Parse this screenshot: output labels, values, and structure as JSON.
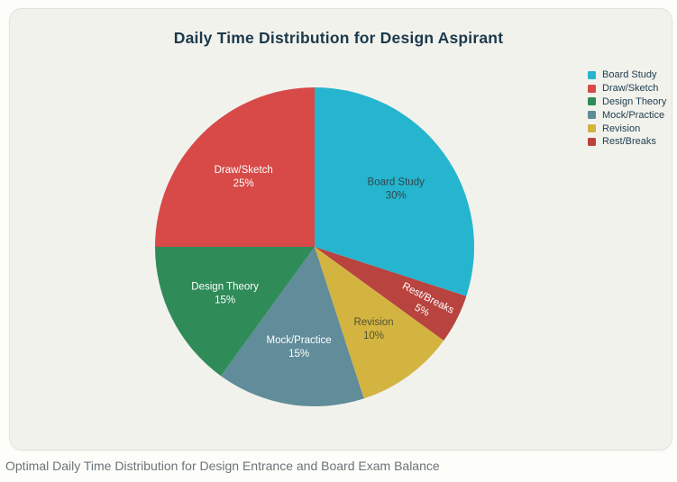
{
  "page": {
    "caption": "Optimal Daily Time Distribution for Design Entrance and Board Exam Balance"
  },
  "theme": {
    "page_background": "#fdfdfa",
    "card_background": "#f2f2ed",
    "card_border": "#e3e3da",
    "title_color": "#1c3a4a",
    "legend_text_color": "#21404f",
    "caption_color": "#6a7479"
  },
  "chart_data": {
    "type": "pie",
    "title": "Daily Time Distribution for Design Aspirant",
    "categories": [
      "Board Study",
      "Draw/Sketch",
      "Design Theory",
      "Mock/Practice",
      "Revision",
      "Rest/Breaks"
    ],
    "values": [
      30,
      25,
      15,
      15,
      10,
      5
    ],
    "value_suffix": "%",
    "colors": [
      "#26b5ce",
      "#d74a47",
      "#2f8b58",
      "#618c99",
      "#d3b441",
      "#b8433f"
    ],
    "inside_label_colors": [
      "#33454c",
      "#ffffff",
      "#ffffff",
      "#ffffff",
      "#55512f",
      "#ffffff"
    ],
    "slice_label_format": "{label} {value}%",
    "draw_order_clockwise_from_top": [
      "Board Study",
      "Rest/Breaks",
      "Revision",
      "Mock/Practice",
      "Design Theory",
      "Draw/Sketch"
    ],
    "rotated_labels": [
      "Rest/Breaks"
    ],
    "legend_position": "right",
    "legend_entries": [
      "Board Study",
      "Draw/Sketch",
      "Design Theory",
      "Mock/Practice",
      "Revision",
      "Rest/Breaks"
    ]
  }
}
